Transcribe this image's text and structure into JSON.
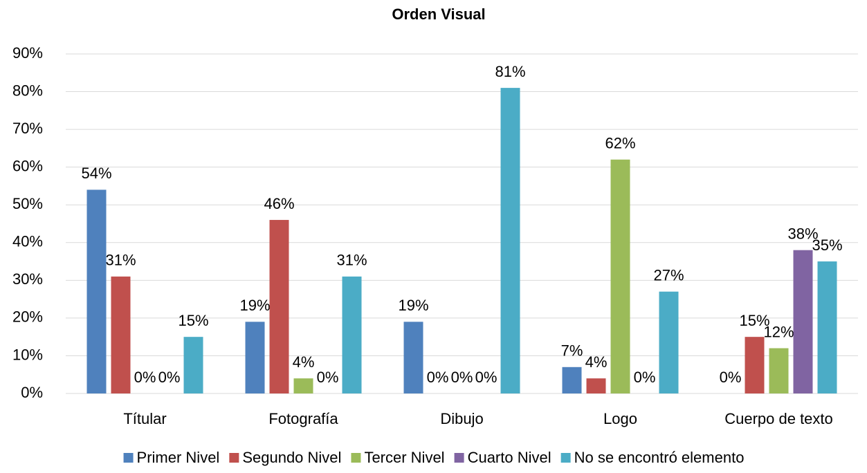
{
  "chart_data": {
    "type": "bar",
    "title": "Orden Visual",
    "categories": [
      "Títular",
      "Fotografía",
      "Dibujo",
      "Logo",
      "Cuerpo de texto"
    ],
    "series": [
      {
        "name": "Primer Nivel",
        "color": "#4f81bd",
        "values": [
          54,
          19,
          19,
          7,
          0
        ],
        "value_labels": [
          "54%",
          "19%",
          "19%",
          "7%",
          "0%"
        ]
      },
      {
        "name": "Segundo Nivel",
        "color": "#c0504d",
        "values": [
          31,
          46,
          0,
          4,
          15
        ],
        "value_labels": [
          "31%",
          "46%",
          "0%",
          "4%",
          "15%"
        ]
      },
      {
        "name": "Tercer Nivel",
        "color": "#9bbb59",
        "values": [
          0,
          4,
          0,
          62,
          12
        ],
        "value_labels": [
          "0%",
          "4%",
          "0%",
          "62%",
          "12%"
        ]
      },
      {
        "name": "Cuarto Nivel",
        "color": "#8064a2",
        "values": [
          0,
          0,
          0,
          0,
          38
        ],
        "value_labels": [
          "0%",
          "0%",
          "0%",
          "0%",
          "38%"
        ]
      },
      {
        "name": "No se encontró elemento",
        "color": "#4bacc6",
        "values": [
          15,
          31,
          81,
          27,
          35
        ],
        "value_labels": [
          "15%",
          "31%",
          "81%",
          "27%",
          "35%"
        ]
      }
    ],
    "ylim": [
      0,
      90
    ],
    "yticks": [
      {
        "value": 0,
        "label": "0%"
      },
      {
        "value": 10,
        "label": "10%"
      },
      {
        "value": 20,
        "label": "20%"
      },
      {
        "value": 30,
        "label": "30%"
      },
      {
        "value": 40,
        "label": "40%"
      },
      {
        "value": 50,
        "label": "50%"
      },
      {
        "value": 60,
        "label": "60%"
      },
      {
        "value": 70,
        "label": "70%"
      },
      {
        "value": 80,
        "label": "80%"
      },
      {
        "value": 90,
        "label": "90%"
      }
    ],
    "grid": true,
    "legend": "bottom"
  }
}
